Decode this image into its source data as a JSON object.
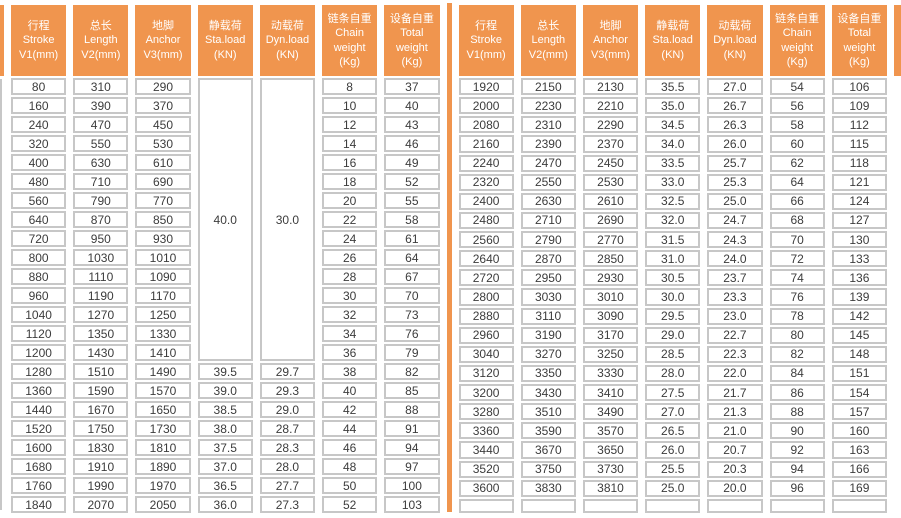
{
  "colors": {
    "header_orange": "#F0954E",
    "grid_gray": "#C7C7C7",
    "text_gray": "#3C3C3C"
  },
  "table": {
    "columns": [
      {
        "lines": [
          "行程",
          "Stroke",
          "V1(mm)"
        ]
      },
      {
        "lines": [
          "总长",
          "Length",
          "V2(mm)"
        ]
      },
      {
        "lines": [
          "地脚",
          "Anchor",
          "V3(mm)"
        ]
      },
      {
        "lines": [
          "静载荷",
          "Sta.load",
          "(KN)"
        ]
      },
      {
        "lines": [
          "动载荷",
          "Dyn.load",
          "(KN)"
        ]
      },
      {
        "lines": [
          "链条自重",
          "Chain",
          "weight",
          "(Kg)"
        ]
      },
      {
        "lines": [
          "设备自重",
          "Total",
          "weight",
          "(Kg)"
        ]
      }
    ],
    "left_merged": {
      "sta_load": "40.0",
      "dyn_load": "30.0",
      "row_span": 15
    },
    "left_rows": [
      [
        "80",
        "310",
        "290",
        null,
        null,
        "8",
        "37"
      ],
      [
        "160",
        "390",
        "370",
        null,
        null,
        "10",
        "40"
      ],
      [
        "240",
        "470",
        "450",
        null,
        null,
        "12",
        "43"
      ],
      [
        "320",
        "550",
        "530",
        null,
        null,
        "14",
        "46"
      ],
      [
        "400",
        "630",
        "610",
        null,
        null,
        "16",
        "49"
      ],
      [
        "480",
        "710",
        "690",
        null,
        null,
        "18",
        "52"
      ],
      [
        "560",
        "790",
        "770",
        null,
        null,
        "20",
        "55"
      ],
      [
        "640",
        "870",
        "850",
        null,
        null,
        "22",
        "58"
      ],
      [
        "720",
        "950",
        "930",
        null,
        null,
        "24",
        "61"
      ],
      [
        "800",
        "1030",
        "1010",
        null,
        null,
        "26",
        "64"
      ],
      [
        "880",
        "1110",
        "1090",
        null,
        null,
        "28",
        "67"
      ],
      [
        "960",
        "1190",
        "1170",
        null,
        null,
        "30",
        "70"
      ],
      [
        "1040",
        "1270",
        "1250",
        null,
        null,
        "32",
        "73"
      ],
      [
        "1120",
        "1350",
        "1330",
        null,
        null,
        "34",
        "76"
      ],
      [
        "1200",
        "1430",
        "1410",
        null,
        null,
        "36",
        "79"
      ],
      [
        "1280",
        "1510",
        "1490",
        "39.5",
        "29.7",
        "38",
        "82"
      ],
      [
        "1360",
        "1590",
        "1570",
        "39.0",
        "29.3",
        "40",
        "85"
      ],
      [
        "1440",
        "1670",
        "1650",
        "38.5",
        "29.0",
        "42",
        "88"
      ],
      [
        "1520",
        "1750",
        "1730",
        "38.0",
        "28.7",
        "44",
        "91"
      ],
      [
        "1600",
        "1830",
        "1810",
        "37.5",
        "28.3",
        "46",
        "94"
      ],
      [
        "1680",
        "1910",
        "1890",
        "37.0",
        "28.0",
        "48",
        "97"
      ],
      [
        "1760",
        "1990",
        "1970",
        "36.5",
        "27.7",
        "50",
        "100"
      ],
      [
        "1840",
        "2070",
        "2050",
        "36.0",
        "27.3",
        "52",
        "103"
      ]
    ],
    "right_rows": [
      [
        "1920",
        "2150",
        "2130",
        "35.5",
        "27.0",
        "54",
        "106"
      ],
      [
        "2000",
        "2230",
        "2210",
        "35.0",
        "26.7",
        "56",
        "109"
      ],
      [
        "2080",
        "2310",
        "2290",
        "34.5",
        "26.3",
        "58",
        "112"
      ],
      [
        "2160",
        "2390",
        "2370",
        "34.0",
        "26.0",
        "60",
        "115"
      ],
      [
        "2240",
        "2470",
        "2450",
        "33.5",
        "25.7",
        "62",
        "118"
      ],
      [
        "2320",
        "2550",
        "2530",
        "33.0",
        "25.3",
        "64",
        "121"
      ],
      [
        "2400",
        "2630",
        "2610",
        "32.5",
        "25.0",
        "66",
        "124"
      ],
      [
        "2480",
        "2710",
        "2690",
        "32.0",
        "24.7",
        "68",
        "127"
      ],
      [
        "2560",
        "2790",
        "2770",
        "31.5",
        "24.3",
        "70",
        "130"
      ],
      [
        "2640",
        "2870",
        "2850",
        "31.0",
        "24.0",
        "72",
        "133"
      ],
      [
        "2720",
        "2950",
        "2930",
        "30.5",
        "23.7",
        "74",
        "136"
      ],
      [
        "2800",
        "3030",
        "3010",
        "30.0",
        "23.3",
        "76",
        "139"
      ],
      [
        "2880",
        "3110",
        "3090",
        "29.5",
        "23.0",
        "78",
        "142"
      ],
      [
        "2960",
        "3190",
        "3170",
        "29.0",
        "22.7",
        "80",
        "145"
      ],
      [
        "3040",
        "3270",
        "3250",
        "28.5",
        "22.3",
        "82",
        "148"
      ],
      [
        "3120",
        "3350",
        "3330",
        "28.0",
        "22.0",
        "84",
        "151"
      ],
      [
        "3200",
        "3430",
        "3410",
        "27.5",
        "21.7",
        "86",
        "154"
      ],
      [
        "3280",
        "3510",
        "3490",
        "27.0",
        "21.3",
        "88",
        "157"
      ],
      [
        "3360",
        "3590",
        "3570",
        "26.5",
        "21.0",
        "90",
        "160"
      ],
      [
        "3440",
        "3670",
        "3650",
        "26.0",
        "20.7",
        "92",
        "163"
      ],
      [
        "3520",
        "3750",
        "3730",
        "25.5",
        "20.3",
        "94",
        "166"
      ],
      [
        "3600",
        "3830",
        "3810",
        "25.0",
        "20.0",
        "96",
        "169"
      ],
      [
        "",
        "",
        "",
        "",
        "",
        "",
        ""
      ]
    ]
  }
}
